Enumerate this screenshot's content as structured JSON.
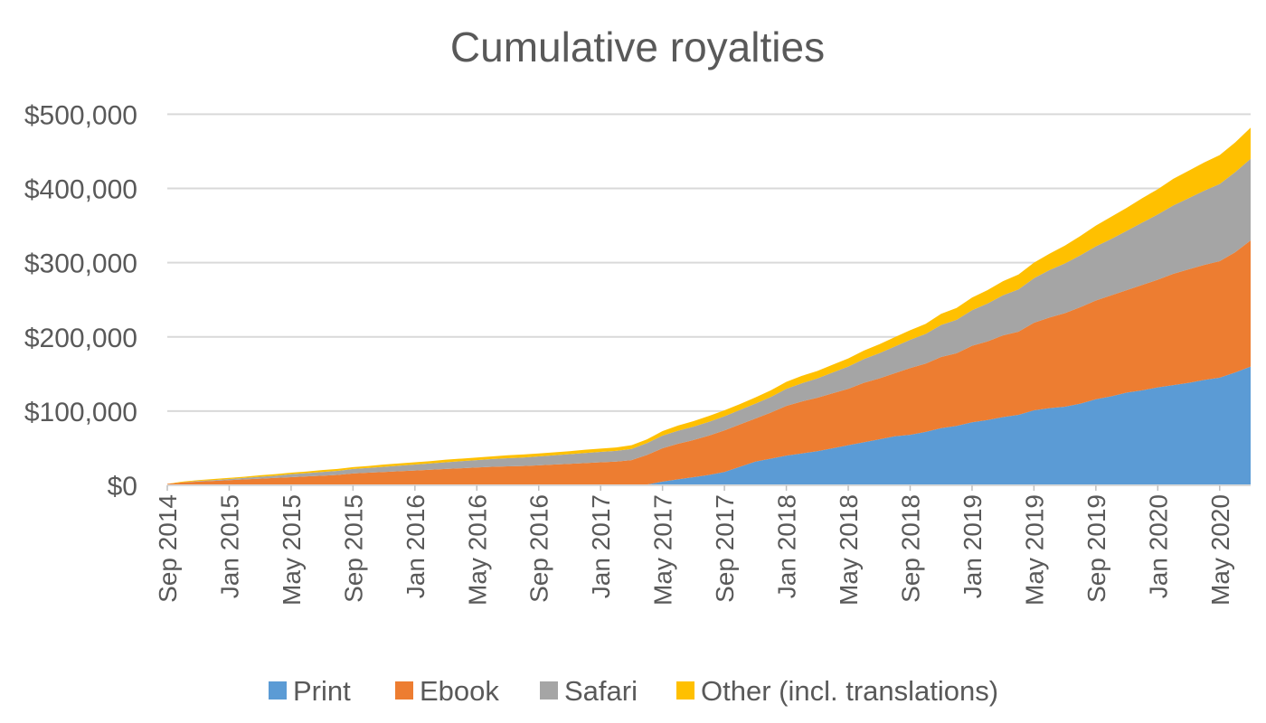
{
  "chart_data": {
    "type": "area",
    "stacked": true,
    "title": "Cumulative royalties",
    "xlabel": "",
    "ylabel": "",
    "ylim": [
      0,
      520000
    ],
    "yticks": [
      0,
      100000,
      200000,
      300000,
      400000,
      500000
    ],
    "ytick_labels": [
      "$0",
      "$100,000",
      "$200,000",
      "$300,000",
      "$400,000",
      "$500,000"
    ],
    "xtick_labels": [
      "Sep 2014",
      "Jan 2015",
      "May 2015",
      "Sep 2015",
      "Jan 2016",
      "May 2016",
      "Sep 2016",
      "Jan 2017",
      "May 2017",
      "Sep 2017",
      "Jan 2018",
      "May 2018",
      "Sep 2018",
      "Jan 2019",
      "May 2019",
      "Sep 2019",
      "Jan 2020",
      "May 2020"
    ],
    "grid": true,
    "legend_position": "bottom",
    "x": [
      "Sep 2014",
      "Oct 2014",
      "Nov 2014",
      "Dec 2014",
      "Jan 2015",
      "Feb 2015",
      "Mar 2015",
      "Apr 2015",
      "May 2015",
      "Jun 2015",
      "Jul 2015",
      "Aug 2015",
      "Sep 2015",
      "Oct 2015",
      "Nov 2015",
      "Dec 2015",
      "Jan 2016",
      "Feb 2016",
      "Mar 2016",
      "Apr 2016",
      "May 2016",
      "Jun 2016",
      "Jul 2016",
      "Aug 2016",
      "Sep 2016",
      "Oct 2016",
      "Nov 2016",
      "Dec 2016",
      "Jan 2017",
      "Feb 2017",
      "Mar 2017",
      "Apr 2017",
      "May 2017",
      "Jun 2017",
      "Jul 2017",
      "Aug 2017",
      "Sep 2017",
      "Oct 2017",
      "Nov 2017",
      "Dec 2017",
      "Jan 2018",
      "Feb 2018",
      "Mar 2018",
      "Apr 2018",
      "May 2018",
      "Jun 2018",
      "Jul 2018",
      "Aug 2018",
      "Sep 2018",
      "Oct 2018",
      "Nov 2018",
      "Dec 2018",
      "Jan 2019",
      "Feb 2019",
      "Mar 2019",
      "Apr 2019",
      "May 2019",
      "Jun 2019",
      "Jul 2019",
      "Aug 2019",
      "Sep 2019",
      "Oct 2019",
      "Nov 2019",
      "Dec 2019",
      "Jan 2020",
      "Feb 2020",
      "Mar 2020",
      "Apr 2020",
      "May 2020",
      "Jun 2020",
      "Jul 2020"
    ],
    "series": [
      {
        "name": "Print",
        "color": "#5b9bd5",
        "values": [
          0,
          0,
          0,
          0,
          0,
          0,
          0,
          0,
          0,
          0,
          0,
          0,
          0,
          0,
          0,
          0,
          0,
          0,
          0,
          0,
          0,
          0,
          0,
          0,
          0,
          0,
          0,
          0,
          0,
          0,
          0,
          1000,
          5000,
          8000,
          11000,
          14000,
          18000,
          25000,
          32000,
          36000,
          40000,
          43000,
          46000,
          50000,
          54000,
          58000,
          62000,
          66000,
          68000,
          72000,
          77000,
          80000,
          85000,
          88000,
          92000,
          95000,
          101000,
          104000,
          106000,
          110000,
          116000,
          120000,
          125000,
          128000,
          132000,
          135000,
          138000,
          142000,
          145000,
          152000,
          160000
        ]
      },
      {
        "name": "Ebook",
        "color": "#ed7d31",
        "values": [
          2000,
          4000,
          5000,
          6000,
          7000,
          8000,
          9000,
          10000,
          11000,
          12000,
          13000,
          14000,
          16000,
          17000,
          18000,
          19000,
          20000,
          21000,
          22000,
          23000,
          24000,
          25000,
          25500,
          26000,
          27000,
          28000,
          29000,
          30000,
          31000,
          32000,
          34000,
          40000,
          45000,
          48000,
          50000,
          53000,
          56000,
          57000,
          58000,
          62000,
          67000,
          70000,
          72000,
          74000,
          76000,
          80000,
          82000,
          85000,
          90000,
          92000,
          96000,
          98000,
          103000,
          106000,
          110000,
          112000,
          118000,
          122000,
          126000,
          130000,
          133000,
          136000,
          138000,
          142000,
          145000,
          150000,
          153000,
          155000,
          157000,
          162000,
          170000
        ]
      },
      {
        "name": "Safari",
        "color": "#a5a5a5",
        "values": [
          0,
          0,
          1000,
          1000,
          1500,
          2000,
          2500,
          3000,
          4000,
          4500,
          5000,
          5500,
          6000,
          6500,
          7000,
          7500,
          8000,
          8500,
          9000,
          9500,
          10000,
          10500,
          11000,
          11500,
          12000,
          12500,
          13000,
          13500,
          14000,
          14500,
          15000,
          16000,
          17000,
          17500,
          18000,
          18500,
          19000,
          19500,
          20000,
          21000,
          23000,
          24500,
          26000,
          28000,
          30000,
          32000,
          34000,
          36000,
          38000,
          40000,
          43000,
          45000,
          48000,
          51000,
          54000,
          57000,
          60000,
          64000,
          67000,
          70000,
          73000,
          76000,
          80000,
          84000,
          88000,
          92000,
          96000,
          100000,
          104000,
          108000,
          110000
        ]
      },
      {
        "name": "Other (incl. translations)",
        "color": "#ffc000",
        "values": [
          0,
          1000,
          1000,
          1500,
          1500,
          1500,
          2000,
          2000,
          2000,
          2000,
          2500,
          2500,
          2500,
          2500,
          3000,
          3000,
          3000,
          3000,
          3500,
          3500,
          3500,
          3500,
          4000,
          4000,
          4000,
          4000,
          4000,
          4500,
          4500,
          4500,
          5000,
          5000,
          6000,
          7000,
          7500,
          8000,
          8000,
          8000,
          8500,
          9000,
          9500,
          10000,
          10000,
          10500,
          11000,
          11500,
          12000,
          12500,
          13000,
          13500,
          15000,
          16000,
          17000,
          18000,
          19000,
          20000,
          21000,
          22000,
          24000,
          26000,
          28000,
          30000,
          31000,
          33000,
          34000,
          36000,
          37000,
          38000,
          39000,
          40000,
          42000
        ]
      }
    ]
  }
}
